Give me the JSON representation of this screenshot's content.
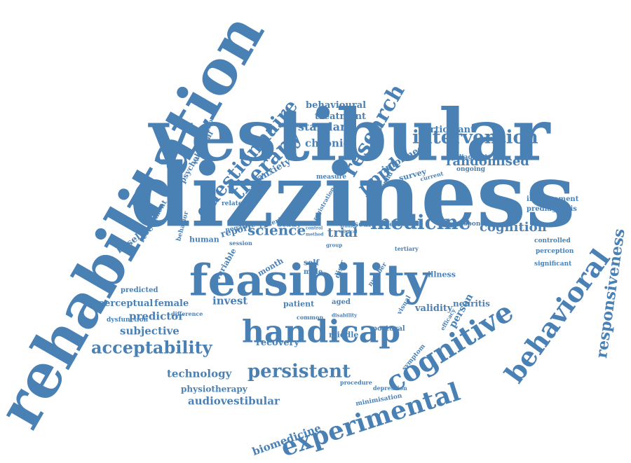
{
  "colors": {
    "word": "#4a81b5",
    "background": "#ffffff"
  },
  "words": [
    "dizziness",
    "vestibular",
    "rehabilitation",
    "feasibility",
    "handicap",
    "experimental",
    "cognitive",
    "behavioral",
    "questionnaire",
    "research",
    "therapy",
    "intervention",
    "medicine",
    "persistent",
    "acceptability",
    "responsiveness",
    "pppd",
    "randomised",
    "cognition",
    "science",
    "trial",
    "audiovestibular",
    "biomedicine",
    "technology",
    "predictor",
    "subjective",
    "invest",
    "recovery",
    "standard",
    "chronic",
    "behavioural",
    "treatment",
    "participant",
    "anxiety",
    "report",
    "study",
    "scale",
    "human",
    "baseline",
    "perceptual",
    "female",
    "physiotherapy",
    "validity",
    "neuritis",
    "person",
    "patient",
    "aged",
    "middle",
    "postural",
    "symptom",
    "illness",
    "improvement",
    "prediagnosis",
    "controlled",
    "perception",
    "significant",
    "informed",
    "diagnosis",
    "survey",
    "psychological",
    "randomisation",
    "recruitment",
    "behavior",
    "related",
    "negative",
    "criterion",
    "session",
    "month",
    "variable",
    "self",
    "male",
    "predicted",
    "dysfunction",
    "difference",
    "minimisation",
    "depression",
    "procedure",
    "visual",
    "efficacy",
    "number",
    "measure",
    "registration",
    "background",
    "effect",
    "response",
    "tertiary",
    "ongoing",
    "current",
    "common",
    "disability",
    "distr",
    "group",
    "control",
    "method",
    "studies",
    "clinical"
  ]
}
